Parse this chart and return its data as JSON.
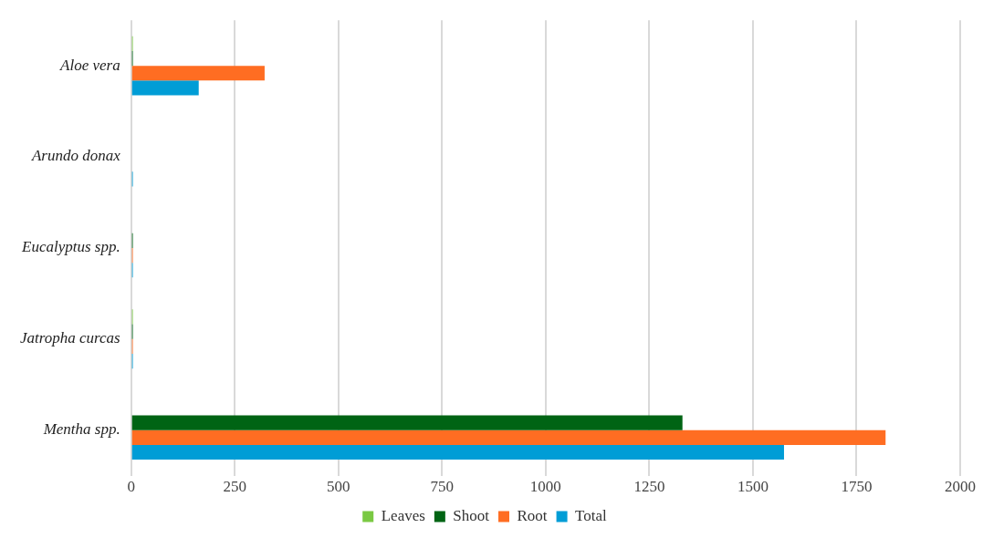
{
  "chart_data": {
    "type": "bar",
    "orientation": "horizontal",
    "categories": [
      "Aloe vera",
      "Arundo donax",
      "Eucalyptus spp.",
      "Jatropha curcas",
      "Mentha spp."
    ],
    "series": [
      {
        "name": "Leaves",
        "color": "#7ac943",
        "values": [
          4,
          null,
          null,
          4,
          null
        ]
      },
      {
        "name": "Shoot",
        "color": "#006414",
        "values": [
          4,
          null,
          4,
          4,
          1330
        ]
      },
      {
        "name": "Root",
        "color": "#ff6d22",
        "values": [
          322,
          null,
          4,
          4,
          1820
        ]
      },
      {
        "name": "Total",
        "color": "#009dd6",
        "values": [
          163,
          4,
          4,
          4,
          1575
        ]
      }
    ],
    "xlim": [
      0,
      2000
    ],
    "xticks": [
      0,
      250,
      500,
      750,
      1000,
      1250,
      1500,
      1750,
      2000
    ],
    "grid": "x",
    "legend": "bottom"
  }
}
